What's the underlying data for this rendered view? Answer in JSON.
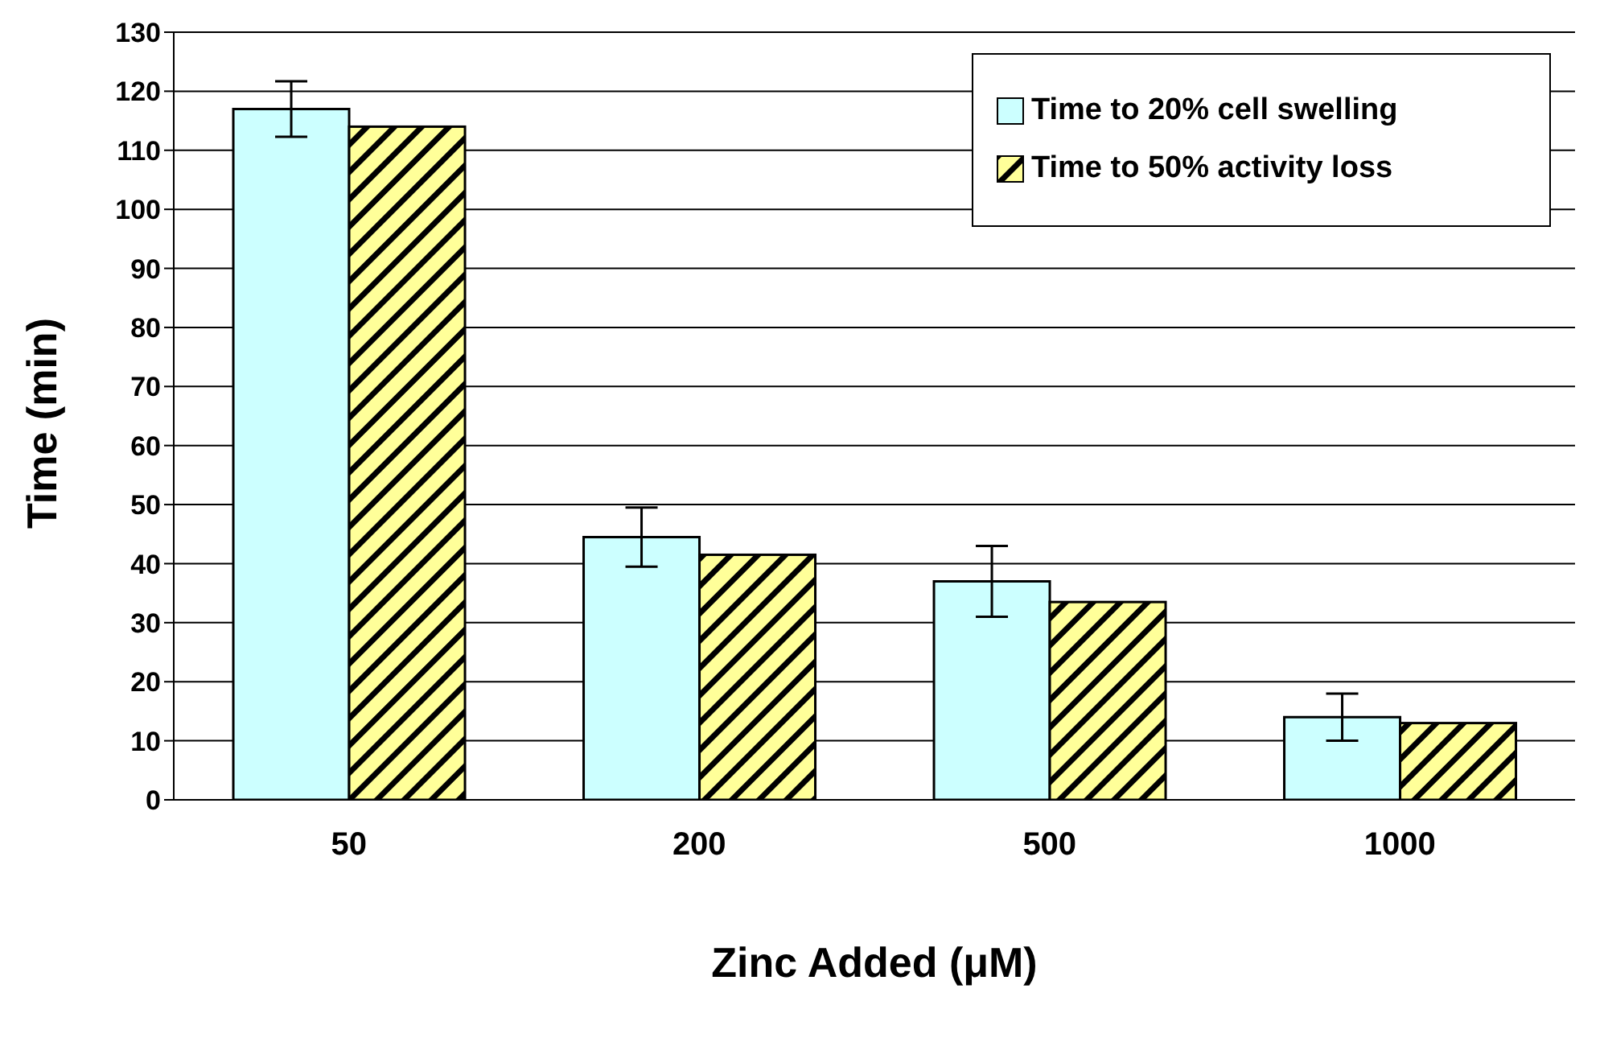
{
  "chart_data": {
    "type": "bar",
    "xlabel": "Zinc Added (μM)",
    "ylabel": "Time (min)",
    "categories": [
      "50",
      "200",
      "500",
      "1000"
    ],
    "series": [
      {
        "name": "Time to 20% cell swelling",
        "color": "#ccffff",
        "values": [
          117,
          44.5,
          37,
          14
        ],
        "errors": [
          4.7,
          5,
          6,
          4
        ]
      },
      {
        "name": "Time to 50% activity loss",
        "color": "#ffff99",
        "values": [
          114,
          41.5,
          33.5,
          13
        ]
      }
    ],
    "ylim": [
      0,
      130
    ],
    "yticks": [
      0,
      10,
      20,
      30,
      40,
      50,
      60,
      70,
      80,
      90,
      100,
      110,
      120,
      130
    ],
    "grid": "y",
    "legend": "top right"
  }
}
